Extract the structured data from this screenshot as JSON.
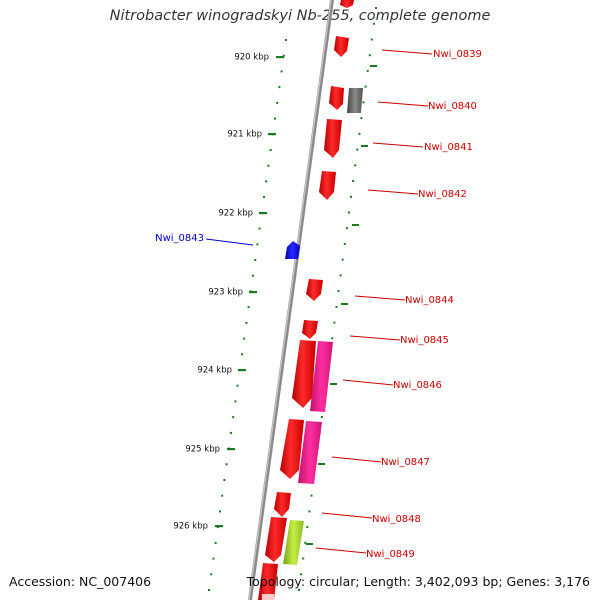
{
  "title": "Nitrobacter winogradskyi Nb-255, complete genome",
  "footer": {
    "accession": "Accession: NC_007406",
    "topology": "Topology: circular; Length: 3,402,093 bp; Genes: 3,176"
  },
  "colors": {
    "backbone": "#8c8c8c",
    "tick": "#1e7a1e",
    "forward_gene": "#ff1a1a",
    "reverse_gene": "#1a1aff",
    "pseudo_gene": "#666666",
    "feature_magenta": "#ff1493",
    "feature_green": "#9acd32",
    "label_forward": "#cc0000",
    "label_reverse": "#0000cc"
  },
  "scale": {
    "ticks": [
      {
        "label": "920 kbp"
      },
      {
        "label": "921 kbp"
      },
      {
        "label": "922 kbp"
      },
      {
        "label": "923 kbp"
      },
      {
        "label": "924 kbp"
      },
      {
        "label": "925 kbp"
      },
      {
        "label": "926 kbp"
      }
    ]
  },
  "genes": [
    {
      "name": "Nwi_0839",
      "strand": "forward"
    },
    {
      "name": "Nwi_0840",
      "strand": "forward"
    },
    {
      "name": "Nwi_0841",
      "strand": "forward"
    },
    {
      "name": "Nwi_0842",
      "strand": "forward"
    },
    {
      "name": "Nwi_0843",
      "strand": "reverse"
    },
    {
      "name": "Nwi_0844",
      "strand": "forward"
    },
    {
      "name": "Nwi_0845",
      "strand": "forward"
    },
    {
      "name": "Nwi_0846",
      "strand": "forward"
    },
    {
      "name": "Nwi_0847",
      "strand": "forward"
    },
    {
      "name": "Nwi_0848",
      "strand": "forward"
    },
    {
      "name": "Nwi_0849",
      "strand": "forward"
    }
  ]
}
